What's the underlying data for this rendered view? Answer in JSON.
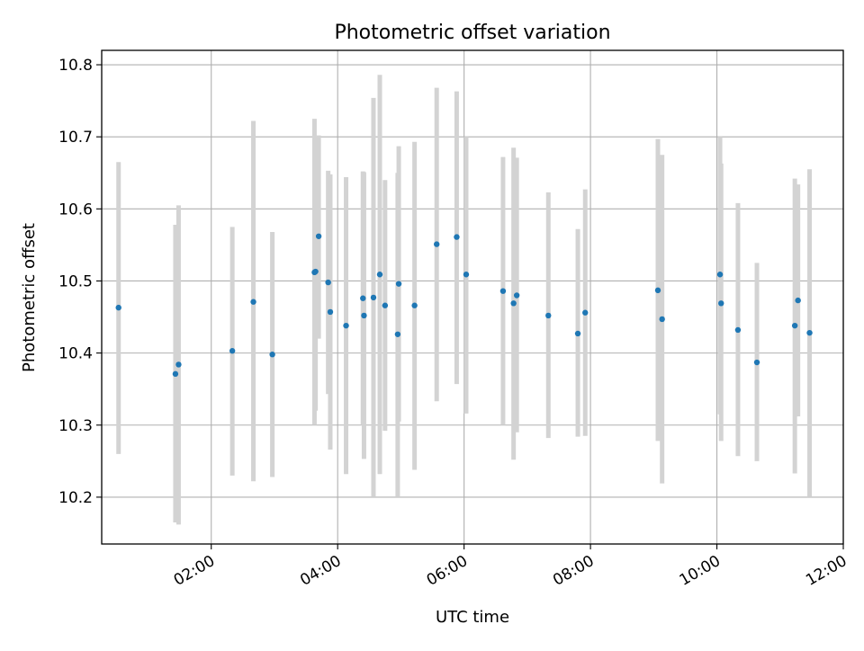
{
  "chart_data": {
    "type": "scatter",
    "title": "Photometric offset variation",
    "xlabel": "UTC time",
    "ylabel": "Photometric offset",
    "xlim": [
      "00:16",
      "12:00"
    ],
    "ylim": [
      10.135,
      10.82
    ],
    "xticks": [
      "02:00",
      "04:00",
      "06:00",
      "08:00",
      "10:00",
      "12:00"
    ],
    "yticks": [
      "10.2",
      "10.3",
      "10.4",
      "10.5",
      "10.6",
      "10.7",
      "10.8"
    ],
    "grid": true,
    "colors": {
      "point": "#1f77b4",
      "errorbar": "#d3d3d3",
      "grid": "#b0b0b0"
    },
    "points": [
      {
        "x": "00:32",
        "y": 10.463,
        "yerr_low": 10.26,
        "yerr_high": 10.665
      },
      {
        "x": "01:26",
        "y": 10.371,
        "yerr_low": 10.165,
        "yerr_high": 10.578
      },
      {
        "x": "01:29",
        "y": 10.384,
        "yerr_low": 10.162,
        "yerr_high": 10.605
      },
      {
        "x": "02:20",
        "y": 10.403,
        "yerr_low": 10.23,
        "yerr_high": 10.575
      },
      {
        "x": "02:40",
        "y": 10.471,
        "yerr_low": 10.222,
        "yerr_high": 10.722
      },
      {
        "x": "02:58",
        "y": 10.398,
        "yerr_low": 10.228,
        "yerr_high": 10.568
      },
      {
        "x": "03:38",
        "y": 10.512,
        "yerr_low": 10.3,
        "yerr_high": 10.725
      },
      {
        "x": "03:39",
        "y": 10.513,
        "yerr_low": 10.32,
        "yerr_high": 10.7
      },
      {
        "x": "03:42",
        "y": 10.562,
        "yerr_low": 10.42,
        "yerr_high": 10.702
      },
      {
        "x": "03:51",
        "y": 10.498,
        "yerr_low": 10.343,
        "yerr_high": 10.653
      },
      {
        "x": "03:53",
        "y": 10.457,
        "yerr_low": 10.266,
        "yerr_high": 10.648
      },
      {
        "x": "04:08",
        "y": 10.438,
        "yerr_low": 10.232,
        "yerr_high": 10.644
      },
      {
        "x": "04:24",
        "y": 10.476,
        "yerr_low": 10.3,
        "yerr_high": 10.652
      },
      {
        "x": "04:25",
        "y": 10.452,
        "yerr_low": 10.253,
        "yerr_high": 10.651
      },
      {
        "x": "04:34",
        "y": 10.477,
        "yerr_low": 10.2,
        "yerr_high": 10.754
      },
      {
        "x": "04:40",
        "y": 10.509,
        "yerr_low": 10.232,
        "yerr_high": 10.786
      },
      {
        "x": "04:45",
        "y": 10.466,
        "yerr_low": 10.292,
        "yerr_high": 10.64
      },
      {
        "x": "04:57",
        "y": 10.426,
        "yerr_low": 10.2,
        "yerr_high": 10.65
      },
      {
        "x": "04:58",
        "y": 10.496,
        "yerr_low": 10.305,
        "yerr_high": 10.687
      },
      {
        "x": "05:13",
        "y": 10.466,
        "yerr_low": 10.238,
        "yerr_high": 10.693
      },
      {
        "x": "05:34",
        "y": 10.551,
        "yerr_low": 10.333,
        "yerr_high": 10.768
      },
      {
        "x": "05:53",
        "y": 10.561,
        "yerr_low": 10.357,
        "yerr_high": 10.763
      },
      {
        "x": "06:02",
        "y": 10.509,
        "yerr_low": 10.316,
        "yerr_high": 10.7
      },
      {
        "x": "06:37",
        "y": 10.486,
        "yerr_low": 10.3,
        "yerr_high": 10.672
      },
      {
        "x": "06:47",
        "y": 10.469,
        "yerr_low": 10.252,
        "yerr_high": 10.685
      },
      {
        "x": "06:50",
        "y": 10.48,
        "yerr_low": 10.29,
        "yerr_high": 10.671
      },
      {
        "x": "07:20",
        "y": 10.452,
        "yerr_low": 10.282,
        "yerr_high": 10.623
      },
      {
        "x": "07:48",
        "y": 10.427,
        "yerr_low": 10.284,
        "yerr_high": 10.572
      },
      {
        "x": "07:55",
        "y": 10.456,
        "yerr_low": 10.285,
        "yerr_high": 10.627
      },
      {
        "x": "09:04",
        "y": 10.487,
        "yerr_low": 10.278,
        "yerr_high": 10.697
      },
      {
        "x": "09:08",
        "y": 10.447,
        "yerr_low": 10.219,
        "yerr_high": 10.675
      },
      {
        "x": "10:03",
        "y": 10.509,
        "yerr_low": 10.315,
        "yerr_high": 10.7
      },
      {
        "x": "10:04",
        "y": 10.469,
        "yerr_low": 10.278,
        "yerr_high": 10.663
      },
      {
        "x": "10:20",
        "y": 10.432,
        "yerr_low": 10.257,
        "yerr_high": 10.608
      },
      {
        "x": "10:38",
        "y": 10.387,
        "yerr_low": 10.25,
        "yerr_high": 10.525
      },
      {
        "x": "11:14",
        "y": 10.438,
        "yerr_low": 10.233,
        "yerr_high": 10.642
      },
      {
        "x": "11:17",
        "y": 10.473,
        "yerr_low": 10.312,
        "yerr_high": 10.634
      },
      {
        "x": "11:28",
        "y": 10.428,
        "yerr_low": 10.2,
        "yerr_high": 10.655
      }
    ]
  }
}
